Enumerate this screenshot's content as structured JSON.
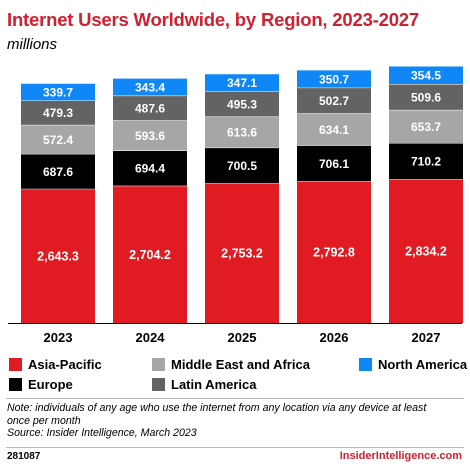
{
  "header": {
    "title": "Internet Users Worldwide, by Region, 2023-2027",
    "subtitle": "millions"
  },
  "chart_data": {
    "type": "bar",
    "stacked": true,
    "title": "Internet Users Worldwide, by Region, 2023-2027",
    "subtitle": "millions",
    "categories": [
      "2023",
      "2024",
      "2025",
      "2026",
      "2027"
    ],
    "series": [
      {
        "name": "Asia-Pacific",
        "color": "#e11b22",
        "values": [
          "2,643.3",
          "2,704.2",
          "2,753.2",
          "2,792.8",
          "2,834.2"
        ]
      },
      {
        "name": "Europe",
        "color": "#000000",
        "values": [
          "687.6",
          "694.4",
          "700.5",
          "706.1",
          "710.2"
        ]
      },
      {
        "name": "Middle East and Africa",
        "color": "#a6a6a6",
        "values": [
          "572.4",
          "593.6",
          "613.6",
          "634.1",
          "653.7"
        ]
      },
      {
        "name": "Latin America",
        "color": "#636363",
        "values": [
          "479.3",
          "487.6",
          "495.3",
          "502.7",
          "509.6"
        ]
      },
      {
        "name": "North America",
        "color": "#0f87f7",
        "values": [
          "339.7",
          "343.4",
          "347.1",
          "350.7",
          "354.5"
        ]
      }
    ],
    "legend_position": "bottom",
    "grid": false
  },
  "legend": {
    "items": [
      {
        "label": "Asia-Pacific",
        "color": "#e11b22"
      },
      {
        "label": "Middle East and Africa",
        "color": "#a6a6a6"
      },
      {
        "label": "North America",
        "color": "#0f87f7"
      },
      {
        "label": "Europe",
        "color": "#000000"
      },
      {
        "label": "Latin America",
        "color": "#636363"
      }
    ]
  },
  "footer": {
    "note": "Note: individuals of any age who use the internet from any location via any device at least once per month",
    "source": "Source: Insider Intelligence, March 2023",
    "chart_id": "281087",
    "brand": "InsiderIntelligence.com"
  }
}
